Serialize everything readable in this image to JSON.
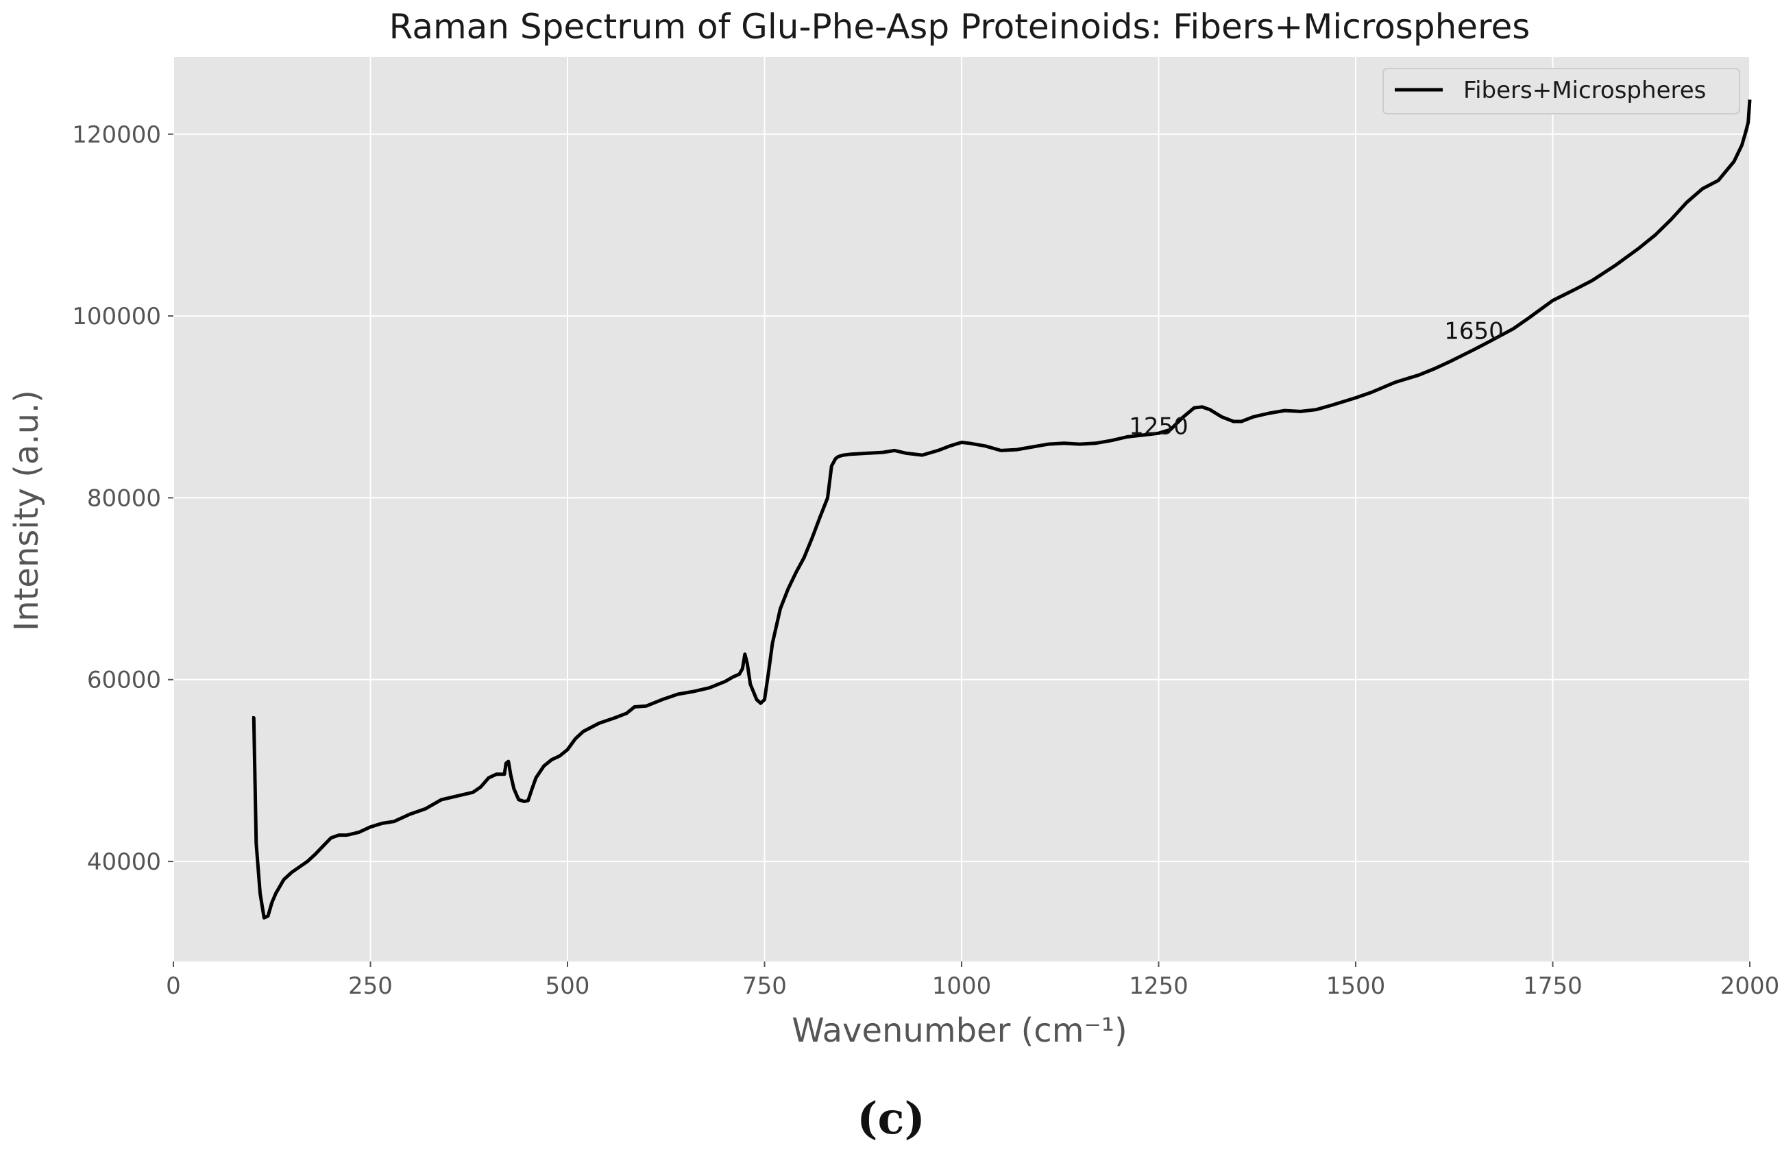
{
  "chart_data": {
    "type": "line",
    "title": "Raman Spectrum of Glu-Phe-Asp Proteinoids: Fibers+Microspheres",
    "xlabel": "Wavenumber (cm⁻¹)",
    "ylabel": "Intensity (a.u.)",
    "xlim": [
      0,
      2000
    ],
    "ylim": [
      29000,
      128500
    ],
    "xticks": [
      0,
      250,
      500,
      750,
      1000,
      1250,
      1500,
      1750,
      2000
    ],
    "yticks": [
      40000,
      60000,
      80000,
      100000,
      120000
    ],
    "grid": true,
    "legend_position": "top-right",
    "series": [
      {
        "name": "Fibers+Microspheres",
        "color": "#000000",
        "x": [
          100,
          102,
          105,
          110,
          115,
          120,
          125,
          130,
          140,
          150,
          160,
          170,
          180,
          190,
          200,
          210,
          220,
          235,
          250,
          265,
          280,
          300,
          320,
          340,
          360,
          380,
          390,
          400,
          410,
          420,
          422,
          425,
          428,
          432,
          438,
          445,
          450,
          455,
          460,
          470,
          480,
          490,
          500,
          510,
          520,
          540,
          560,
          575,
          585,
          600,
          620,
          640,
          660,
          680,
          700,
          710,
          718,
          722,
          725,
          728,
          732,
          740,
          745,
          750,
          755,
          760,
          770,
          780,
          790,
          800,
          810,
          820,
          830,
          835,
          840,
          843,
          846,
          850,
          860,
          880,
          900,
          915,
          930,
          950,
          970,
          985,
          1000,
          1010,
          1030,
          1050,
          1070,
          1090,
          1110,
          1130,
          1150,
          1170,
          1190,
          1210,
          1230,
          1250,
          1265,
          1280,
          1295,
          1305,
          1315,
          1330,
          1345,
          1355,
          1370,
          1390,
          1410,
          1430,
          1450,
          1470,
          1500,
          1520,
          1550,
          1580,
          1600,
          1620,
          1650,
          1670,
          1700,
          1720,
          1750,
          1780,
          1800,
          1830,
          1860,
          1880,
          1900,
          1920,
          1940,
          1960,
          1980,
          1990,
          1995,
          1998,
          2000
        ],
        "y": [
          55800,
          55800,
          42000,
          36500,
          33800,
          34000,
          35500,
          36500,
          38000,
          38800,
          39400,
          40000,
          40800,
          41700,
          42600,
          42900,
          42900,
          43200,
          43800,
          44200,
          44400,
          45200,
          45800,
          46800,
          47200,
          47600,
          48200,
          49200,
          49600,
          49600,
          50800,
          51000,
          49500,
          48000,
          46800,
          46600,
          46700,
          48000,
          49200,
          50500,
          51200,
          51600,
          52300,
          53500,
          54300,
          55200,
          55800,
          56300,
          57000,
          57100,
          57800,
          58400,
          58700,
          59100,
          59800,
          60300,
          60600,
          61200,
          62800,
          61800,
          59500,
          57800,
          57400,
          57800,
          60800,
          64000,
          67800,
          70000,
          71800,
          73400,
          75500,
          77800,
          80000,
          83500,
          84300,
          84500,
          84600,
          84700,
          84800,
          84900,
          85000,
          85200,
          84900,
          84700,
          85200,
          85700,
          86100,
          86000,
          85700,
          85200,
          85300,
          85600,
          85900,
          86000,
          85900,
          86000,
          86300,
          86700,
          86900,
          87100,
          87500,
          88800,
          89900,
          90000,
          89700,
          88900,
          88400,
          88400,
          88900,
          89300,
          89600,
          89500,
          89700,
          90200,
          91000,
          91600,
          92700,
          93500,
          94200,
          95000,
          96300,
          97200,
          98600,
          99800,
          101700,
          103000,
          103900,
          105600,
          107500,
          108900,
          110600,
          112500,
          114000,
          114900,
          117000,
          118800,
          120300,
          121300,
          123800
        ]
      }
    ],
    "annotations": [
      {
        "text": "1250",
        "x": 1250,
        "y": 87300
      },
      {
        "text": "1650",
        "x": 1650,
        "y": 97800
      }
    ]
  },
  "caption": "(c)",
  "colors": {
    "plot_background": "#e5e5e5",
    "grid": "#ffffff",
    "line": "#000000"
  }
}
